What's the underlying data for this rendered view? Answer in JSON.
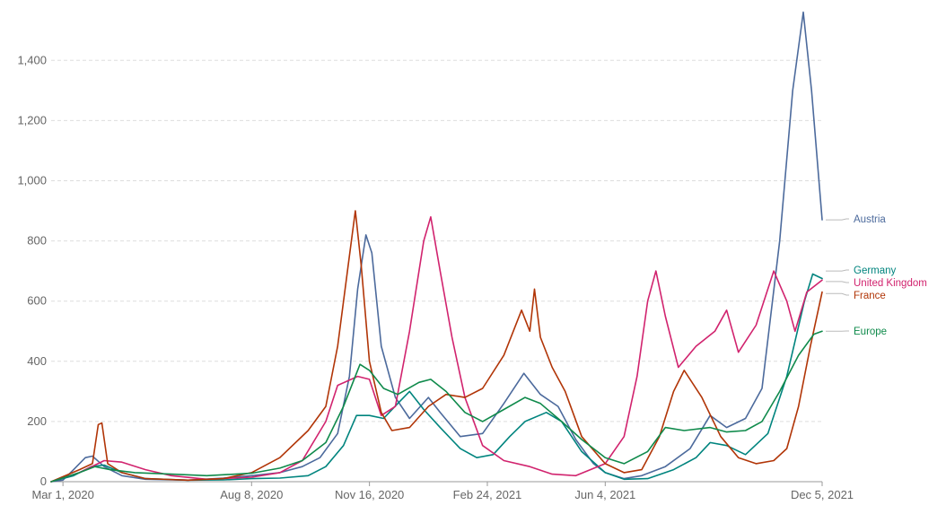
{
  "chart_data": {
    "type": "line",
    "title": "",
    "xlabel": "",
    "ylabel": "",
    "ylim": [
      0,
      1600
    ],
    "grid": "horizontal dashed",
    "legend_placement": "right, at line ends",
    "yticks": [
      {
        "value": 0,
        "label": "0"
      },
      {
        "value": 200,
        "label": "200"
      },
      {
        "value": 400,
        "label": "400"
      },
      {
        "value": 600,
        "label": "600"
      },
      {
        "value": 800,
        "label": "800"
      },
      {
        "value": 1000,
        "label": "1,000"
      },
      {
        "value": 1200,
        "label": "1,200"
      },
      {
        "value": 1400,
        "label": "1,400"
      }
    ],
    "xticks": [
      {
        "date": "2020-03-01",
        "label": "Mar 1, 2020"
      },
      {
        "date": "2020-08-08",
        "label": "Aug 8, 2020"
      },
      {
        "date": "2020-11-16",
        "label": "Nov 16, 2020"
      },
      {
        "date": "2021-02-24",
        "label": "Feb 24, 2021"
      },
      {
        "date": "2021-06-04",
        "label": "Jun 4, 2021"
      },
      {
        "date": "2021-12-05",
        "label": "Dec 5, 2021"
      }
    ],
    "x_range": [
      "2020-02-20",
      "2021-12-05"
    ],
    "series": [
      {
        "name": "Austria",
        "color": "#4c6a9c",
        "points": [
          [
            "2020-02-20",
            0
          ],
          [
            "2020-03-01",
            5
          ],
          [
            "2020-03-10",
            40
          ],
          [
            "2020-03-20",
            80
          ],
          [
            "2020-03-26",
            85
          ],
          [
            "2020-04-05",
            50
          ],
          [
            "2020-04-20",
            20
          ],
          [
            "2020-05-10",
            8
          ],
          [
            "2020-06-15",
            5
          ],
          [
            "2020-07-15",
            12
          ],
          [
            "2020-08-08",
            20
          ],
          [
            "2020-09-01",
            30
          ],
          [
            "2020-09-20",
            50
          ],
          [
            "2020-10-05",
            80
          ],
          [
            "2020-10-20",
            160
          ],
          [
            "2020-10-30",
            350
          ],
          [
            "2020-11-06",
            640
          ],
          [
            "2020-11-13",
            820
          ],
          [
            "2020-11-18",
            760
          ],
          [
            "2020-11-26",
            450
          ],
          [
            "2020-12-08",
            280
          ],
          [
            "2020-12-20",
            210
          ],
          [
            "2021-01-05",
            280
          ],
          [
            "2021-01-15",
            230
          ],
          [
            "2021-02-01",
            150
          ],
          [
            "2021-02-20",
            160
          ],
          [
            "2021-03-10",
            260
          ],
          [
            "2021-03-27",
            360
          ],
          [
            "2021-04-10",
            290
          ],
          [
            "2021-04-25",
            250
          ],
          [
            "2021-05-10",
            140
          ],
          [
            "2021-05-25",
            60
          ],
          [
            "2021-06-04",
            30
          ],
          [
            "2021-06-20",
            10
          ],
          [
            "2021-07-05",
            20
          ],
          [
            "2021-07-25",
            50
          ],
          [
            "2021-08-15",
            110
          ],
          [
            "2021-09-01",
            220
          ],
          [
            "2021-09-15",
            180
          ],
          [
            "2021-10-01",
            210
          ],
          [
            "2021-10-15",
            310
          ],
          [
            "2021-10-30",
            800
          ],
          [
            "2021-11-10",
            1300
          ],
          [
            "2021-11-19",
            1560
          ],
          [
            "2021-11-26",
            1300
          ],
          [
            "2021-12-05",
            870
          ]
        ]
      },
      {
        "name": "Germany",
        "color": "#00847e",
        "points": [
          [
            "2020-02-20",
            0
          ],
          [
            "2020-03-10",
            20
          ],
          [
            "2020-03-25",
            50
          ],
          [
            "2020-04-05",
            55
          ],
          [
            "2020-04-20",
            30
          ],
          [
            "2020-05-10",
            10
          ],
          [
            "2020-06-15",
            5
          ],
          [
            "2020-07-15",
            6
          ],
          [
            "2020-08-08",
            10
          ],
          [
            "2020-09-01",
            12
          ],
          [
            "2020-09-25",
            20
          ],
          [
            "2020-10-10",
            50
          ],
          [
            "2020-10-25",
            120
          ],
          [
            "2020-11-05",
            220
          ],
          [
            "2020-11-16",
            220
          ],
          [
            "2020-11-28",
            210
          ],
          [
            "2020-12-10",
            260
          ],
          [
            "2020-12-20",
            300
          ],
          [
            "2021-01-01",
            240
          ],
          [
            "2021-01-15",
            180
          ],
          [
            "2021-02-01",
            110
          ],
          [
            "2021-02-15",
            80
          ],
          [
            "2021-03-01",
            90
          ],
          [
            "2021-03-15",
            150
          ],
          [
            "2021-03-28",
            200
          ],
          [
            "2021-04-15",
            230
          ],
          [
            "2021-04-28",
            200
          ],
          [
            "2021-05-15",
            100
          ],
          [
            "2021-06-04",
            30
          ],
          [
            "2021-06-20",
            8
          ],
          [
            "2021-07-10",
            10
          ],
          [
            "2021-08-01",
            40
          ],
          [
            "2021-08-20",
            80
          ],
          [
            "2021-09-01",
            130
          ],
          [
            "2021-09-15",
            120
          ],
          [
            "2021-10-01",
            90
          ],
          [
            "2021-10-20",
            160
          ],
          [
            "2021-11-05",
            350
          ],
          [
            "2021-11-20",
            600
          ],
          [
            "2021-11-27",
            690
          ],
          [
            "2021-12-05",
            675
          ]
        ]
      },
      {
        "name": "United Kingdom",
        "color": "#d1236e",
        "points": [
          [
            "2020-02-20",
            0
          ],
          [
            "2020-03-15",
            30
          ],
          [
            "2020-04-05",
            70
          ],
          [
            "2020-04-20",
            65
          ],
          [
            "2020-05-10",
            40
          ],
          [
            "2020-06-01",
            20
          ],
          [
            "2020-07-01",
            8
          ],
          [
            "2020-08-08",
            15
          ],
          [
            "2020-09-01",
            30
          ],
          [
            "2020-09-20",
            70
          ],
          [
            "2020-10-10",
            200
          ],
          [
            "2020-10-20",
            320
          ],
          [
            "2020-11-06",
            350
          ],
          [
            "2020-11-16",
            340
          ],
          [
            "2020-11-26",
            220
          ],
          [
            "2020-12-08",
            250
          ],
          [
            "2020-12-20",
            500
          ],
          [
            "2021-01-01",
            800
          ],
          [
            "2021-01-07",
            880
          ],
          [
            "2021-01-15",
            700
          ],
          [
            "2021-01-25",
            480
          ],
          [
            "2021-02-05",
            280
          ],
          [
            "2021-02-20",
            120
          ],
          [
            "2021-03-10",
            70
          ],
          [
            "2021-04-01",
            50
          ],
          [
            "2021-04-20",
            25
          ],
          [
            "2021-05-10",
            20
          ],
          [
            "2021-06-04",
            60
          ],
          [
            "2021-06-20",
            150
          ],
          [
            "2021-07-01",
            350
          ],
          [
            "2021-07-10",
            600
          ],
          [
            "2021-07-17",
            700
          ],
          [
            "2021-07-25",
            550
          ],
          [
            "2021-08-05",
            380
          ],
          [
            "2021-08-20",
            450
          ],
          [
            "2021-09-05",
            500
          ],
          [
            "2021-09-15",
            570
          ],
          [
            "2021-09-25",
            430
          ],
          [
            "2021-10-10",
            520
          ],
          [
            "2021-10-25",
            700
          ],
          [
            "2021-11-05",
            600
          ],
          [
            "2021-11-12",
            500
          ],
          [
            "2021-11-22",
            630
          ],
          [
            "2021-12-05",
            670
          ]
        ]
      },
      {
        "name": "France",
        "color": "#b13507",
        "points": [
          [
            "2020-02-20",
            0
          ],
          [
            "2020-03-15",
            40
          ],
          [
            "2020-03-26",
            60
          ],
          [
            "2020-03-31",
            190
          ],
          [
            "2020-04-03",
            195
          ],
          [
            "2020-04-08",
            60
          ],
          [
            "2020-04-20",
            30
          ],
          [
            "2020-05-10",
            10
          ],
          [
            "2020-06-15",
            5
          ],
          [
            "2020-07-15",
            10
          ],
          [
            "2020-08-08",
            30
          ],
          [
            "2020-09-01",
            80
          ],
          [
            "2020-09-25",
            170
          ],
          [
            "2020-10-10",
            250
          ],
          [
            "2020-10-20",
            450
          ],
          [
            "2020-10-30",
            750
          ],
          [
            "2020-11-04",
            900
          ],
          [
            "2020-11-09",
            720
          ],
          [
            "2020-11-16",
            400
          ],
          [
            "2020-11-26",
            230
          ],
          [
            "2020-12-05",
            170
          ],
          [
            "2020-12-20",
            180
          ],
          [
            "2021-01-05",
            250
          ],
          [
            "2021-01-20",
            290
          ],
          [
            "2021-02-05",
            280
          ],
          [
            "2021-02-20",
            310
          ],
          [
            "2021-03-10",
            420
          ],
          [
            "2021-03-25",
            570
          ],
          [
            "2021-04-01",
            500
          ],
          [
            "2021-04-05",
            640
          ],
          [
            "2021-04-10",
            480
          ],
          [
            "2021-04-20",
            380
          ],
          [
            "2021-05-01",
            300
          ],
          [
            "2021-05-15",
            150
          ],
          [
            "2021-06-04",
            60
          ],
          [
            "2021-06-20",
            30
          ],
          [
            "2021-07-05",
            40
          ],
          [
            "2021-07-20",
            150
          ],
          [
            "2021-08-01",
            300
          ],
          [
            "2021-08-10",
            370
          ],
          [
            "2021-08-25",
            280
          ],
          [
            "2021-09-10",
            150
          ],
          [
            "2021-09-25",
            80
          ],
          [
            "2021-10-10",
            60
          ],
          [
            "2021-10-25",
            70
          ],
          [
            "2021-11-05",
            110
          ],
          [
            "2021-11-15",
            250
          ],
          [
            "2021-11-25",
            450
          ],
          [
            "2021-12-05",
            630
          ]
        ]
      },
      {
        "name": "Europe",
        "color": "#0f8a4b",
        "points": [
          [
            "2020-02-20",
            0
          ],
          [
            "2020-03-15",
            30
          ],
          [
            "2020-03-28",
            50
          ],
          [
            "2020-04-10",
            40
          ],
          [
            "2020-05-01",
            30
          ],
          [
            "2020-06-01",
            25
          ],
          [
            "2020-07-01",
            20
          ],
          [
            "2020-08-08",
            28
          ],
          [
            "2020-09-01",
            45
          ],
          [
            "2020-09-20",
            70
          ],
          [
            "2020-10-10",
            130
          ],
          [
            "2020-10-25",
            250
          ],
          [
            "2020-11-08",
            390
          ],
          [
            "2020-11-16",
            370
          ],
          [
            "2020-11-28",
            310
          ],
          [
            "2020-12-10",
            290
          ],
          [
            "2020-12-28",
            330
          ],
          [
            "2021-01-07",
            340
          ],
          [
            "2021-01-20",
            300
          ],
          [
            "2021-02-05",
            230
          ],
          [
            "2021-02-20",
            200
          ],
          [
            "2021-03-10",
            240
          ],
          [
            "2021-03-28",
            280
          ],
          [
            "2021-04-10",
            260
          ],
          [
            "2021-04-28",
            200
          ],
          [
            "2021-05-15",
            140
          ],
          [
            "2021-06-04",
            80
          ],
          [
            "2021-06-20",
            60
          ],
          [
            "2021-07-10",
            100
          ],
          [
            "2021-07-25",
            180
          ],
          [
            "2021-08-10",
            170
          ],
          [
            "2021-09-01",
            180
          ],
          [
            "2021-09-15",
            165
          ],
          [
            "2021-10-01",
            170
          ],
          [
            "2021-10-15",
            200
          ],
          [
            "2021-10-30",
            300
          ],
          [
            "2021-11-15",
            420
          ],
          [
            "2021-11-28",
            490
          ],
          [
            "2021-12-05",
            500
          ]
        ]
      }
    ],
    "legend_entries": [
      {
        "name": "Austria",
        "color": "#4c6a9c",
        "end_value": 870
      },
      {
        "name": "Germany",
        "color": "#00847e",
        "end_value": 700
      },
      {
        "name": "United Kingdom",
        "color": "#d1236e",
        "end_value": 665
      },
      {
        "name": "France",
        "color": "#b13507",
        "end_value": 625
      },
      {
        "name": "Europe",
        "color": "#0f8a4b",
        "end_value": 500
      }
    ]
  }
}
